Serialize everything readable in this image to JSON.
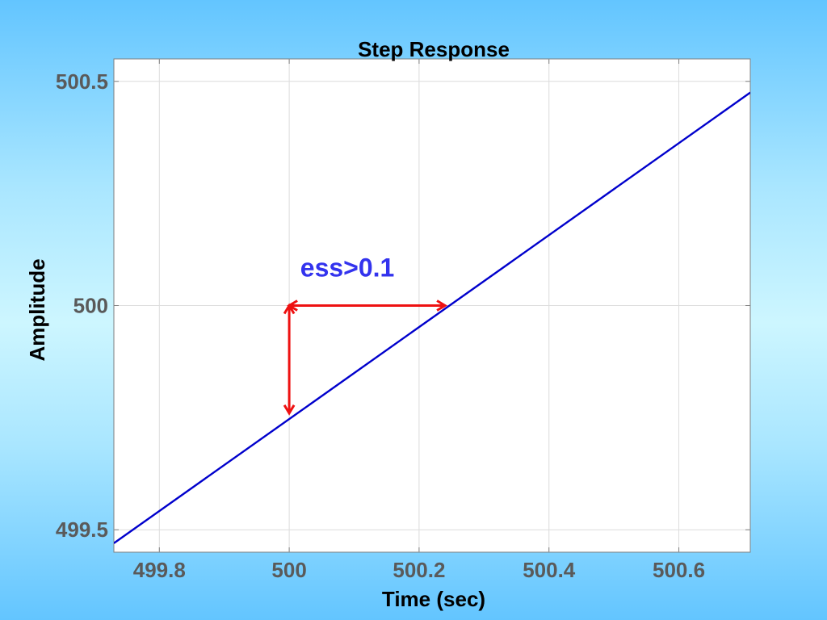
{
  "chart_data": {
    "type": "line",
    "title": "Step Response",
    "xlabel": "Time (sec)",
    "ylabel": "Amplitude",
    "xlim": [
      499.73,
      500.71
    ],
    "ylim": [
      499.45,
      500.55
    ],
    "x_ticks": [
      499.8,
      500,
      500.2,
      500.4,
      500.6
    ],
    "x_tick_labels": [
      "499.8",
      "500",
      "500.2",
      "500.4",
      "500.6"
    ],
    "y_ticks": [
      499.5,
      500,
      500.5
    ],
    "y_tick_labels": [
      "499.5",
      "500",
      "500.5"
    ],
    "grid": true,
    "series": [
      {
        "x": [
          499.73,
          500.71
        ],
        "y": [
          499.47,
          500.475
        ],
        "color": "#0000cc"
      }
    ],
    "annotations": {
      "text": "ess>0.1",
      "text_color": "#3333ee",
      "text_at": [
        500.017,
        500.065
      ],
      "arrow_color": "#ee1111",
      "vertical_arrow": {
        "x": 500.0,
        "y_from": 500.0,
        "y_to": 499.76
      },
      "horizontal_arrow": {
        "y": 500.0,
        "x_from": 500.0,
        "x_to": 500.24
      }
    }
  }
}
